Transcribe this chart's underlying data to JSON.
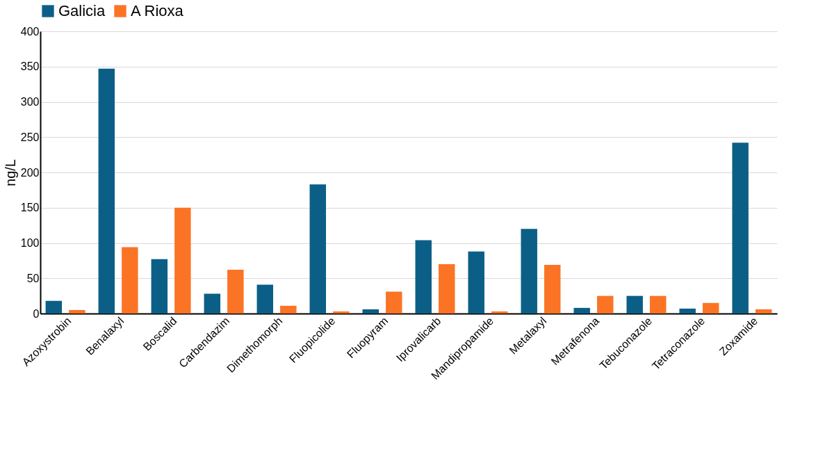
{
  "chart_data": {
    "type": "bar",
    "ylabel": "ng/L",
    "categories": [
      "Azoxystrobin",
      "Benalaxyl",
      "Boscalid",
      "Carbendazim",
      "Dimethomorph",
      "Fluopicolide",
      "Fluopyram",
      "Iprovalicarb",
      "Mandipropamide",
      "Metalaxyl",
      "Metrafenona",
      "Tebuconazole",
      "Tetraconazole",
      "Zoxamide"
    ],
    "series": [
      {
        "name": "Galicia",
        "color": "#0b5f87",
        "values": [
          18,
          347,
          77,
          28,
          41,
          183,
          6,
          104,
          88,
          120,
          8,
          25,
          7,
          242
        ]
      },
      {
        "name": "A Rioxa",
        "color": "#fb7426",
        "values": [
          5,
          94,
          150,
          62,
          11,
          3,
          31,
          70,
          3,
          69,
          25,
          25,
          15,
          6
        ]
      }
    ],
    "ylim": [
      0,
      400
    ],
    "yticks": [
      0,
      50,
      100,
      150,
      200,
      250,
      300,
      350,
      400
    ],
    "grid": "y",
    "legend": "top"
  }
}
